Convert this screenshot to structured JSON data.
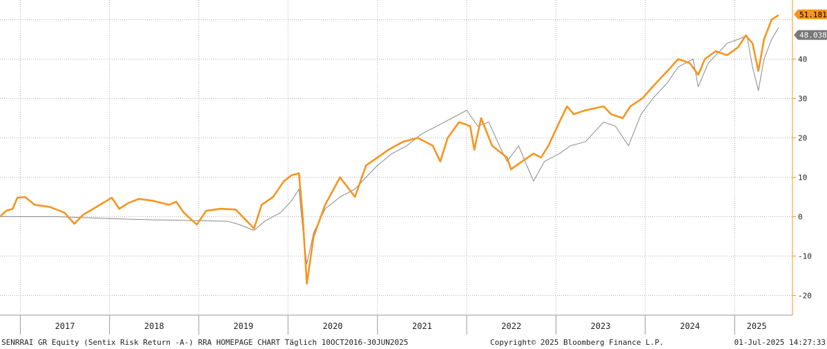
{
  "chart_data": {
    "type": "line",
    "y_axis_position": "right",
    "grid": true,
    "ylim": [
      -25,
      55
    ],
    "yticks": [
      -20,
      -10,
      0,
      10,
      20,
      30,
      40
    ],
    "ytick_labels": [
      "-20",
      "-10",
      "0",
      "10",
      "20",
      "30",
      "40"
    ],
    "x_years": [
      "2017",
      "2018",
      "2019",
      "2020",
      "2021",
      "2022",
      "2023",
      "2024",
      "2025"
    ],
    "x_range": [
      "2016-10-10",
      "2025-06-30"
    ],
    "series": [
      {
        "color": "#f7941d",
        "last_value_label": "51.181",
        "points": [
          [
            "2016-10-10",
            0.0
          ],
          [
            "2016-11-05",
            1.5
          ],
          [
            "2016-12-01",
            2.0
          ],
          [
            "2016-12-20",
            4.8
          ],
          [
            "2017-01-20",
            5.0
          ],
          [
            "2017-03-01",
            3.0
          ],
          [
            "2017-05-01",
            2.5
          ],
          [
            "2017-07-01",
            1.0
          ],
          [
            "2017-08-10",
            -1.8
          ],
          [
            "2017-09-15",
            0.5
          ],
          [
            "2017-11-01",
            2.2
          ],
          [
            "2018-01-10",
            4.8
          ],
          [
            "2018-02-10",
            2.0
          ],
          [
            "2018-03-20",
            3.5
          ],
          [
            "2018-05-01",
            4.5
          ],
          [
            "2018-07-01",
            4.0
          ],
          [
            "2018-09-01",
            3.0
          ],
          [
            "2018-10-01",
            3.8
          ],
          [
            "2018-11-01",
            1.0
          ],
          [
            "2018-12-24",
            -2.0
          ],
          [
            "2019-02-01",
            1.5
          ],
          [
            "2019-04-01",
            2.0
          ],
          [
            "2019-06-01",
            1.8
          ],
          [
            "2019-08-15",
            -3.0
          ],
          [
            "2019-09-15",
            3.0
          ],
          [
            "2019-11-01",
            5.0
          ],
          [
            "2019-12-15",
            9.0
          ],
          [
            "2020-01-15",
            10.5
          ],
          [
            "2020-02-15",
            11.0
          ],
          [
            "2020-03-01",
            0.0
          ],
          [
            "2020-03-18",
            -17.0
          ],
          [
            "2020-04-15",
            -5.0
          ],
          [
            "2020-06-01",
            3.0
          ],
          [
            "2020-08-01",
            10.0
          ],
          [
            "2020-10-01",
            5.0
          ],
          [
            "2020-11-15",
            13.0
          ],
          [
            "2021-01-01",
            15.0
          ],
          [
            "2021-02-15",
            17.0
          ],
          [
            "2021-04-15",
            19.0
          ],
          [
            "2021-06-15",
            20.0
          ],
          [
            "2021-08-15",
            18.0
          ],
          [
            "2021-09-15",
            14.0
          ],
          [
            "2021-10-15",
            20.0
          ],
          [
            "2021-12-01",
            24.0
          ],
          [
            "2022-01-15",
            23.0
          ],
          [
            "2022-02-01",
            17.0
          ],
          [
            "2022-03-01",
            25.0
          ],
          [
            "2022-04-15",
            18.0
          ],
          [
            "2022-06-15",
            15.0
          ],
          [
            "2022-07-01",
            12.0
          ],
          [
            "2022-08-15",
            14.0
          ],
          [
            "2022-10-01",
            16.0
          ],
          [
            "2022-11-01",
            15.0
          ],
          [
            "2022-12-01",
            18.0
          ],
          [
            "2023-01-15",
            24.0
          ],
          [
            "2023-02-15",
            28.0
          ],
          [
            "2023-03-15",
            26.0
          ],
          [
            "2023-05-01",
            27.0
          ],
          [
            "2023-07-15",
            28.0
          ],
          [
            "2023-08-15",
            26.0
          ],
          [
            "2023-10-01",
            25.0
          ],
          [
            "2023-11-01",
            28.0
          ],
          [
            "2023-12-20",
            30.0
          ],
          [
            "2024-02-01",
            33.0
          ],
          [
            "2024-04-01",
            37.0
          ],
          [
            "2024-05-15",
            40.0
          ],
          [
            "2024-07-01",
            39.0
          ],
          [
            "2024-08-05",
            36.0
          ],
          [
            "2024-09-01",
            40.0
          ],
          [
            "2024-10-15",
            42.0
          ],
          [
            "2024-12-01",
            41.0
          ],
          [
            "2025-01-15",
            43.0
          ],
          [
            "2025-02-15",
            46.0
          ],
          [
            "2025-03-15",
            44.0
          ],
          [
            "2025-04-08",
            37.0
          ],
          [
            "2025-05-01",
            45.0
          ],
          [
            "2025-06-01",
            50.0
          ],
          [
            "2025-06-30",
            51.181
          ]
        ]
      },
      {
        "color": "#888888",
        "last_value_label": "48.038",
        "points": [
          [
            "2016-10-10",
            0.0
          ],
          [
            "2017-06-01",
            0.0
          ],
          [
            "2018-01-01",
            -0.5
          ],
          [
            "2018-07-01",
            -0.8
          ],
          [
            "2019-01-01",
            -1.0
          ],
          [
            "2019-05-01",
            -1.2
          ],
          [
            "2019-06-15",
            -2.0
          ],
          [
            "2019-08-15",
            -3.5
          ],
          [
            "2019-10-01",
            -1.0
          ],
          [
            "2019-12-01",
            1.0
          ],
          [
            "2020-01-15",
            4.0
          ],
          [
            "2020-02-15",
            7.0
          ],
          [
            "2020-03-01",
            -3.0
          ],
          [
            "2020-03-18",
            -12.0
          ],
          [
            "2020-04-15",
            -4.0
          ],
          [
            "2020-06-01",
            2.0
          ],
          [
            "2020-08-01",
            5.0
          ],
          [
            "2020-10-01",
            7.0
          ],
          [
            "2020-11-15",
            10.0
          ],
          [
            "2021-01-01",
            13.0
          ],
          [
            "2021-03-01",
            16.0
          ],
          [
            "2021-05-01",
            18.0
          ],
          [
            "2021-07-01",
            21.0
          ],
          [
            "2021-09-01",
            23.0
          ],
          [
            "2021-11-01",
            25.0
          ],
          [
            "2022-01-01",
            27.0
          ],
          [
            "2022-02-15",
            23.0
          ],
          [
            "2022-04-01",
            24.0
          ],
          [
            "2022-05-15",
            18.0
          ],
          [
            "2022-06-15",
            14.0
          ],
          [
            "2022-08-01",
            18.0
          ],
          [
            "2022-10-01",
            9.0
          ],
          [
            "2022-11-15",
            14.0
          ],
          [
            "2023-01-15",
            16.0
          ],
          [
            "2023-03-01",
            18.0
          ],
          [
            "2023-05-01",
            19.0
          ],
          [
            "2023-07-15",
            24.0
          ],
          [
            "2023-09-01",
            23.0
          ],
          [
            "2023-10-25",
            18.0
          ],
          [
            "2023-12-15",
            26.0
          ],
          [
            "2024-02-01",
            30.0
          ],
          [
            "2024-04-01",
            34.0
          ],
          [
            "2024-05-15",
            38.0
          ],
          [
            "2024-07-15",
            40.0
          ],
          [
            "2024-08-05",
            33.0
          ],
          [
            "2024-09-15",
            39.0
          ],
          [
            "2024-11-01",
            42.0
          ],
          [
            "2024-12-01",
            44.0
          ],
          [
            "2025-01-15",
            45.0
          ],
          [
            "2025-02-20",
            46.0
          ],
          [
            "2025-03-15",
            38.0
          ],
          [
            "2025-04-08",
            32.0
          ],
          [
            "2025-05-01",
            40.0
          ],
          [
            "2025-06-01",
            45.0
          ],
          [
            "2025-06-30",
            48.038
          ]
        ]
      }
    ]
  },
  "footer": {
    "left": "SENRRAI GR Equity (Sentix Risk Return -A-) RRA HOMEPAGE CHART  Täglich 10OCT2016-30JUN2025",
    "middle": "Copyright© 2025 Bloomberg Finance L.P.",
    "right": "01-Jul-2025 14:27:33"
  }
}
